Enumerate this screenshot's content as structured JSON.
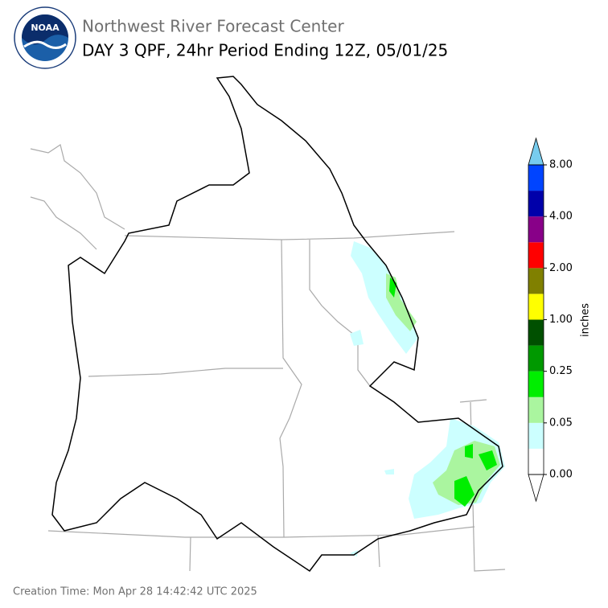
{
  "header": {
    "logo_text": "NOAA",
    "title": "Northwest River Forecast Center",
    "subtitle": "DAY 3 QPF, 24hr Period Ending 12Z, 05/01/25"
  },
  "colorbar": {
    "label": "inches",
    "colors": [
      "#ffffff",
      "#ccffff",
      "#aaf59f",
      "#00ee00",
      "#009900",
      "#005000",
      "#ffff00",
      "#808000",
      "#ff0000",
      "#880088",
      "#0000aa",
      "#0044ff"
    ],
    "under_color": "#ffffff",
    "over_color": "#77ccee",
    "ticks": [
      {
        "value": 0,
        "label": "0.00"
      },
      {
        "value": 0.05,
        "label": "0.05"
      },
      {
        "value": 0.25,
        "label": "0.25"
      },
      {
        "value": 1,
        "label": "1.00"
      },
      {
        "value": 2,
        "label": "2.00"
      },
      {
        "value": 4,
        "label": "4.00"
      },
      {
        "value": 8,
        "label": "8.00"
      }
    ]
  },
  "footer": {
    "creation_time": "Creation Time: Mon Apr 28 14:42:42 UTC 2025"
  }
}
